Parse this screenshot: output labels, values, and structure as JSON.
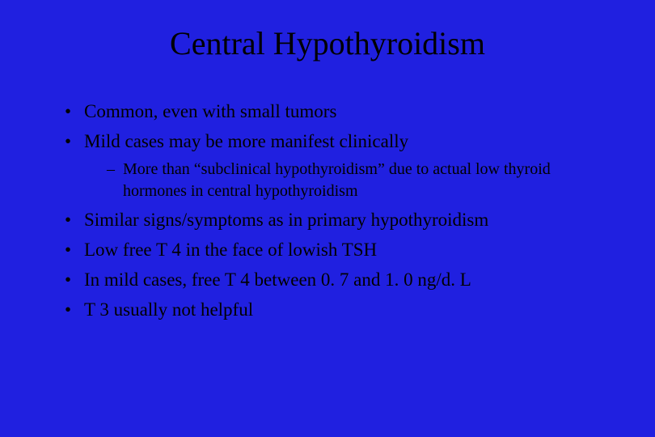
{
  "slide": {
    "background_color": "#2020e0",
    "text_color": "#000000",
    "title_fontsize": 40,
    "body_fontsize": 23,
    "sub_fontsize": 20,
    "font_family": "Times New Roman",
    "title": "Central Hypothyroidism",
    "bullets": {
      "b0": "Common, even with small tumors",
      "b1": "Mild cases may be more manifest clinically",
      "b1_sub0": "More than “subclinical hypothyroidism” due to actual low thyroid hormones in central hypothyroidism",
      "b2": "Similar signs/symptoms as in primary hypothyroidism",
      "b3": "Low free T 4 in the face of lowish TSH",
      "b4": "In mild cases, free T 4 between 0. 7 and 1. 0 ng/d. L",
      "b5": "T 3 usually not helpful"
    }
  }
}
